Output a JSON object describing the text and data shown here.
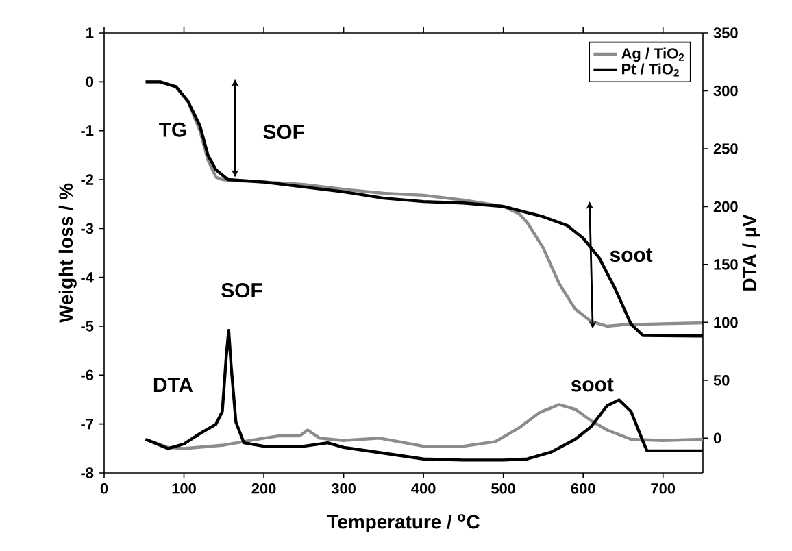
{
  "chart_data": {
    "type": "line",
    "xlabel": "Temperature / $^{o}$C",
    "ylabel": "Weight loss / %",
    "y2label": "DTA / µV",
    "xlim": [
      0,
      750
    ],
    "xticks": [
      0,
      100,
      200,
      300,
      400,
      500,
      600,
      700
    ],
    "ylim": [
      -8,
      1
    ],
    "yticks": [
      -8,
      -7,
      -6,
      -5,
      -4,
      -3,
      -2,
      -1,
      0,
      1
    ],
    "y2lim": [
      -30,
      350
    ],
    "y2ticks": [
      0,
      50,
      100,
      150,
      200,
      250,
      300,
      350
    ],
    "legend": "top right",
    "marker": "none",
    "line_style": "solid",
    "annotations": [
      "TG",
      "SOF",
      "soot",
      "SOF",
      "DTA",
      "soot"
    ],
    "series": [
      {
        "name": "Ag / TiO$_{2}$",
        "color": "#8c8c8c",
        "x": [
          52,
          70,
          90,
          105,
          120,
          130,
          140,
          148,
          160,
          200,
          250,
          300,
          350,
          400,
          450,
          500,
          520,
          530,
          550,
          570,
          590,
          610,
          630,
          650,
          700,
          750
        ],
        "values": [
          0,
          0,
          -0.1,
          -0.4,
          -1.0,
          -1.6,
          -1.95,
          -2.0,
          -2.02,
          -2.05,
          -2.1,
          -2.2,
          -2.28,
          -2.32,
          -2.42,
          -2.55,
          -2.7,
          -2.88,
          -3.4,
          -4.13,
          -4.65,
          -4.9,
          -5.0,
          -4.97,
          -4.95,
          -4.93
        ]
      },
      {
        "name": "Pt / TiO$_{2}$",
        "color": "#000000",
        "x": [
          52,
          70,
          90,
          105,
          120,
          130,
          140,
          155,
          200,
          250,
          300,
          350,
          400,
          450,
          500,
          550,
          580,
          600,
          620,
          640,
          660,
          675,
          750
        ],
        "values": [
          0,
          0,
          -0.1,
          -0.4,
          -0.9,
          -1.5,
          -1.8,
          -2.0,
          -2.05,
          -2.15,
          -2.25,
          -2.38,
          -2.45,
          -2.48,
          -2.55,
          -2.76,
          -2.94,
          -3.2,
          -3.6,
          -4.23,
          -4.96,
          -5.19,
          -5.2
        ]
      },
      {
        "axis": "y2",
        "color": "#8c8c8c",
        "x": [
          52,
          80,
          100,
          150,
          200,
          220,
          245,
          255,
          270,
          300,
          345,
          400,
          450,
          490,
          520,
          545,
          570,
          590,
          610,
          630,
          660,
          700,
          750
        ],
        "values": [
          -1,
          -8,
          -9,
          -6,
          0,
          2,
          2,
          7,
          0,
          -2,
          0,
          -7,
          -7,
          -3,
          9,
          22,
          29,
          25,
          15,
          7,
          -1,
          -2,
          -1
        ]
      },
      {
        "axis": "y2",
        "color": "#000000",
        "x": [
          52,
          80,
          100,
          120,
          140,
          148,
          153,
          156,
          159,
          165,
          175,
          200,
          250,
          280,
          300,
          350,
          400,
          450,
          500,
          530,
          560,
          590,
          610,
          630,
          645,
          660,
          675,
          680,
          750
        ],
        "values": [
          -1,
          -9,
          -5,
          4,
          12,
          23,
          71,
          93,
          63,
          14,
          -4,
          -7,
          -7,
          -4,
          -8,
          -13,
          -18,
          -19,
          -19,
          -18,
          -12,
          -1,
          10,
          28,
          33,
          23,
          -3,
          -11,
          -11
        ]
      }
    ]
  }
}
